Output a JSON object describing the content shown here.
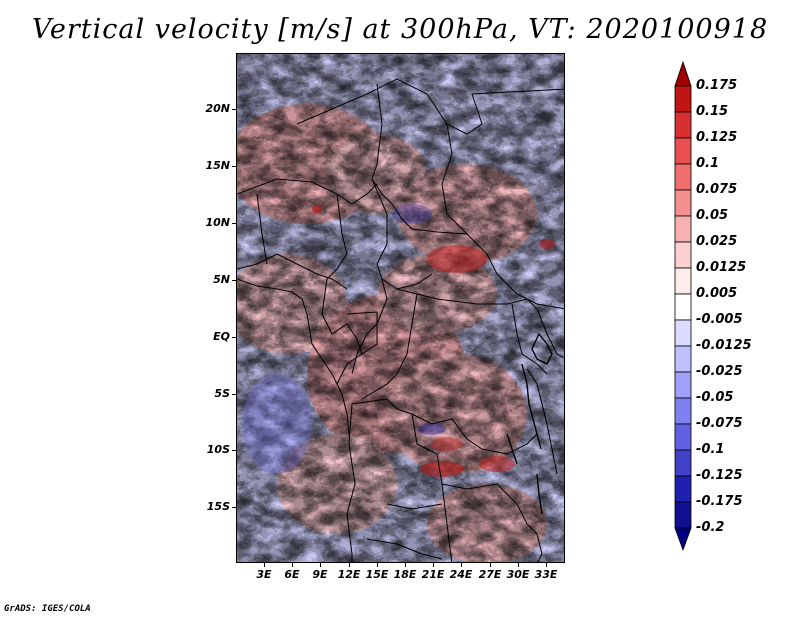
{
  "title": "Vertical velocity [m/s] at 300hPa, VT: 2020100918",
  "credit": "GrADS: IGES/COLA",
  "lat_labels": [
    "20N",
    "15N",
    "10N",
    "5N",
    "EQ",
    "5S",
    "10S",
    "15S"
  ],
  "lon_labels": [
    "3E",
    "6E",
    "9E",
    "12E",
    "15E",
    "18E",
    "21E",
    "24E",
    "27E",
    "30E",
    "33E"
  ],
  "colorbar": {
    "labels": [
      "0.175",
      "0.15",
      "0.125",
      "0.1",
      "0.075",
      "0.05",
      "0.025",
      "0.0125",
      "0.005",
      "-0.005",
      "-0.0125",
      "-0.025",
      "-0.05",
      "-0.075",
      "-0.1",
      "-0.125",
      "-0.175",
      "-0.2"
    ],
    "colors": [
      "#a00000",
      "#c01515",
      "#d83030",
      "#e85050",
      "#f07070",
      "#f49090",
      "#f8b0b0",
      "#fbd0d0",
      "#feecec",
      "#ffffff",
      "#dcdcff",
      "#c0c0ff",
      "#a0a0f8",
      "#8080f0",
      "#6060e0",
      "#4040c8",
      "#2020b0",
      "#101090",
      "#000080"
    ]
  }
}
